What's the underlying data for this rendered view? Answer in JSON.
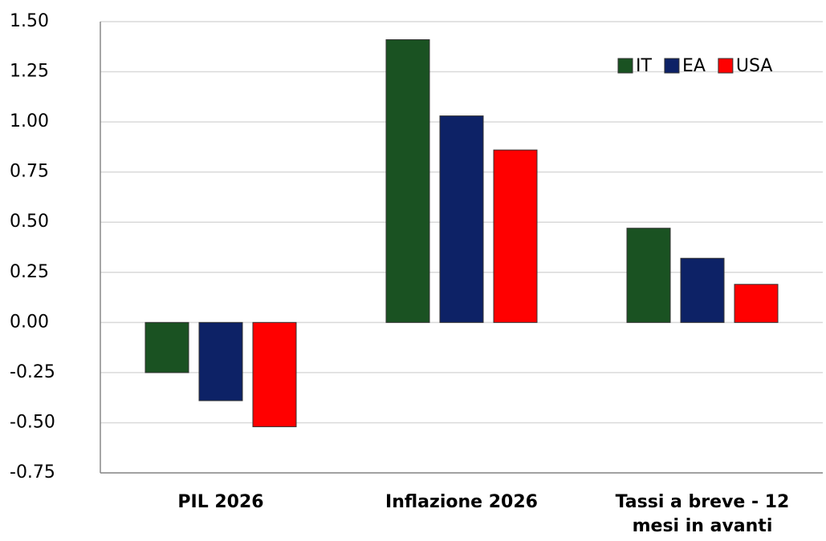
{
  "chart_data": {
    "type": "bar",
    "categories": [
      "PIL 2026",
      "Inflazione 2026",
      "Tassi a breve - 12 mesi in avanti"
    ],
    "series": [
      {
        "name": "IT",
        "color": "#1a5222",
        "values": [
          -0.25,
          1.41,
          0.47
        ]
      },
      {
        "name": "EA",
        "color": "#0d2266",
        "values": [
          -0.39,
          1.03,
          0.32
        ]
      },
      {
        "name": "USA",
        "color": "#ff0000",
        "values": [
          -0.52,
          0.86,
          0.19
        ]
      }
    ],
    "ylim": [
      -0.75,
      1.5
    ],
    "yticks": [
      {
        "value": -0.75,
        "label": "-0.75"
      },
      {
        "value": -0.5,
        "label": "-0.50"
      },
      {
        "value": -0.25,
        "label": "-0.25"
      },
      {
        "value": 0,
        "label": "0.00"
      },
      {
        "value": 0.25,
        "label": "0.25"
      },
      {
        "value": 0.5,
        "label": "0.50"
      },
      {
        "value": 0.75,
        "label": "0.75"
      },
      {
        "value": 1,
        "label": "1.00"
      },
      {
        "value": 1.25,
        "label": "1.25"
      },
      {
        "value": 1.5,
        "label": "1.50"
      }
    ],
    "grid": true,
    "legend": "top-right"
  }
}
